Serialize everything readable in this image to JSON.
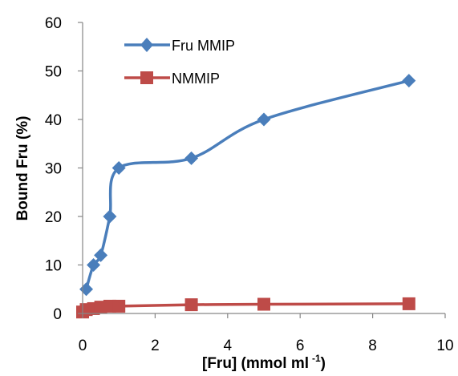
{
  "chart_data": {
    "type": "scatter",
    "title": "",
    "xlabel": "[Fru] (mmol ml",
    "xlabel_sup": "-1",
    "xlabel_close": ")",
    "ylabel": "Bound Fru (%)",
    "xlim": [
      0,
      10
    ],
    "ylim": [
      0,
      60
    ],
    "xticks": [
      0,
      2,
      4,
      6,
      8,
      10
    ],
    "yticks": [
      0,
      10,
      20,
      30,
      40,
      50,
      60
    ],
    "grid": false,
    "legend_position": "top-left",
    "series": [
      {
        "name": "Fru MMIP",
        "color": "#4a7ebb",
        "marker": "diamond",
        "smooth": true,
        "x": [
          0.1,
          0.3,
          0.5,
          0.75,
          1.0,
          3.0,
          5.0,
          9.0
        ],
        "y": [
          5,
          10,
          12,
          20,
          30,
          32,
          40,
          48
        ]
      },
      {
        "name": "NMMIP",
        "color": "#be4b48",
        "marker": "square",
        "smooth": true,
        "x": [
          0.0,
          0.1,
          0.3,
          0.5,
          0.75,
          1.0,
          3.0,
          5.0,
          9.0
        ],
        "y": [
          0.3,
          0.8,
          1.0,
          1.3,
          1.5,
          1.5,
          1.8,
          1.9,
          2.0
        ]
      }
    ]
  }
}
